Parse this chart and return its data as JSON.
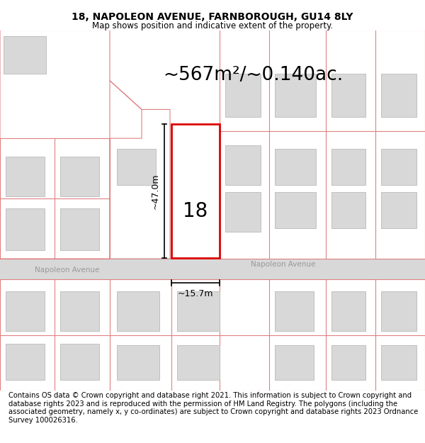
{
  "title": "18, NAPOLEON AVENUE, FARNBOROUGH, GU14 8LY",
  "subtitle": "Map shows position and indicative extent of the property.",
  "area_text": "~567m²/~0.140ac.",
  "dim_height": "~47.0m",
  "dim_width": "~15.7m",
  "number_label": "18",
  "road_name_left": "Napoleon Avenue",
  "road_name_right": "Napoleon Avenue",
  "footer": "Contains OS data © Crown copyright and database right 2021. This information is subject to Crown copyright and database rights 2023 and is reproduced with the permission of HM Land Registry. The polygons (including the associated geometry, namely x, y co-ordinates) are subject to Crown copyright and database rights 2023 Ordnance Survey 100026316.",
  "bg_color": "#ffffff",
  "map_bg": "#ffffff",
  "road_color": "#d8d8d8",
  "plot_outline_color": "#dd0000",
  "parcel_line_color": "#e08080",
  "building_fill": "#d8d8d8",
  "building_outline": "#c0c0c0",
  "title_fontsize": 10,
  "subtitle_fontsize": 8.5,
  "area_fontsize": 19,
  "dim_fontsize": 9,
  "number_fontsize": 20,
  "footer_fontsize": 7.2
}
